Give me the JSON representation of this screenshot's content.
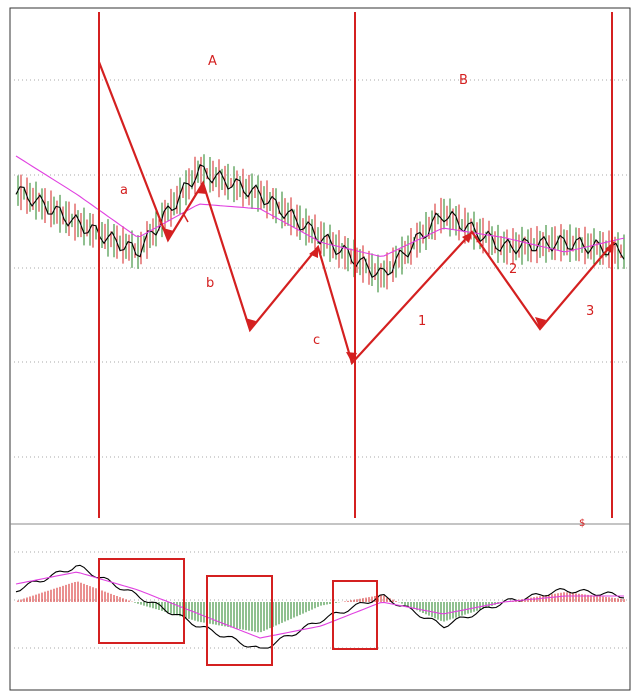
{
  "chart_data": [
    {
      "type": "line",
      "panel": "price",
      "x": [
        0,
        10,
        20,
        30,
        40,
        50,
        60,
        70,
        80,
        90,
        100
      ],
      "series": [
        {
          "color": "#000000",
          "values": [
            48,
            41,
            35,
            52,
            47,
            38,
            30,
            43,
            36,
            37,
            35
          ]
        },
        {
          "color": "#e040e0",
          "values": [
            55,
            47,
            38,
            45,
            44,
            37,
            34,
            40,
            38,
            35,
            38
          ]
        }
      ],
      "volume_bar_colors": [
        "#208020",
        "#d42020"
      ],
      "grid": true,
      "annotations": {
        "wave_labels": [
          "A",
          "B",
          "a",
          "b",
          "c",
          "1",
          "2",
          "3"
        ],
        "marker": "$",
        "vertical_lines": 3,
        "color": "#d42020"
      }
    },
    {
      "type": "line",
      "panel": "indicator",
      "series": [
        {
          "color": "#000000",
          "values": [
            2,
            6,
            1,
            -4,
            -8,
            -3,
            1,
            -4,
            0,
            2,
            1
          ]
        },
        {
          "color": "#e040e0",
          "values": [
            3,
            5,
            2,
            -2,
            -6,
            -4,
            0,
            -2,
            0,
            1,
            1
          ]
        }
      ],
      "histogram_colors": [
        "#d42020",
        "#208020"
      ],
      "boxes": 3,
      "grid": true
    }
  ]
}
